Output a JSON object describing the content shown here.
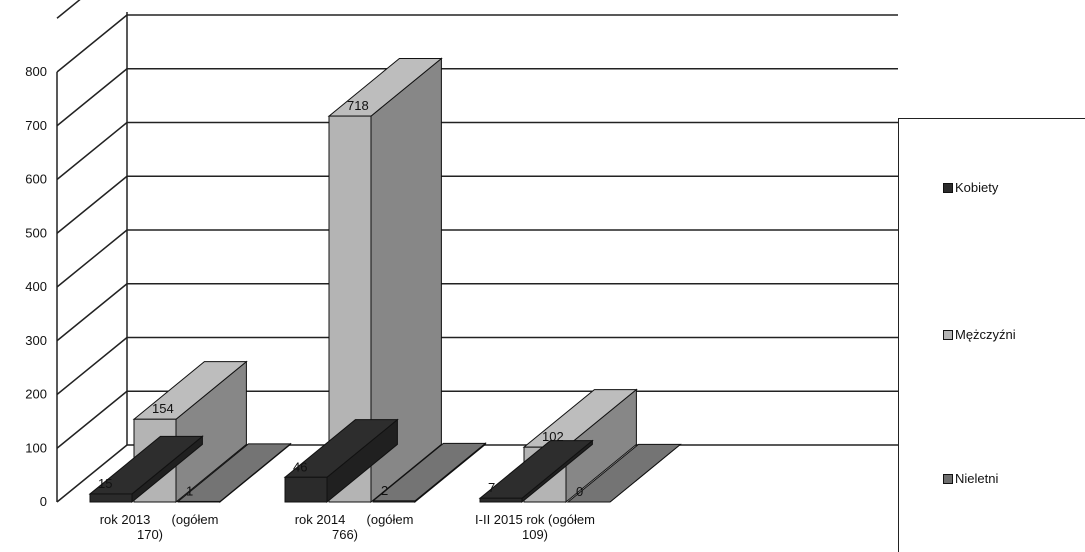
{
  "chart_data": {
    "type": "bar",
    "title": "",
    "xlabel": "",
    "ylabel": "",
    "ylim": [
      0,
      800
    ],
    "yticks": [
      0,
      100,
      200,
      300,
      400,
      500,
      600,
      700,
      800
    ],
    "grid": true,
    "legend_position": "right",
    "categories": [
      [
        "rok 2013",
        "(ogółem",
        "170)"
      ],
      [
        "rok 2014",
        "(ogółem",
        "766)"
      ],
      [
        "I-II 2015 rok (ogółem",
        "109)"
      ]
    ],
    "series": [
      {
        "name": "Kobiety",
        "values": [
          15,
          46,
          7
        ],
        "color": "#2b2b2b"
      },
      {
        "name": "Mężczyźni",
        "values": [
          154,
          718,
          102
        ],
        "color": "#b4b4b4"
      },
      {
        "name": "Nieletni",
        "values": [
          1,
          2,
          0
        ],
        "color": "#6e6e6e"
      }
    ],
    "data_labels": [
      [
        "15",
        "154",
        "1"
      ],
      [
        "46",
        "718",
        "2"
      ],
      [
        "7",
        "102",
        "0"
      ]
    ]
  }
}
